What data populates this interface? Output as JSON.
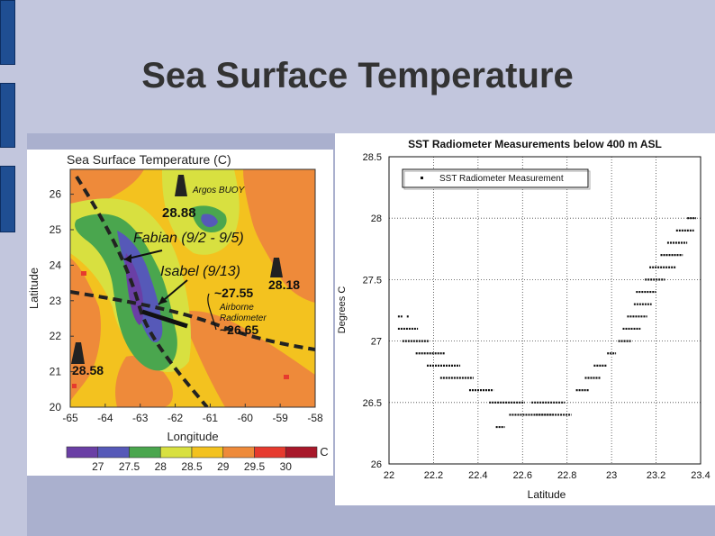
{
  "slide": {
    "title": "Sea Surface Temperature",
    "colors": {
      "background": "#c2c6dd",
      "accent": "#1f4e92",
      "title": "#333333"
    }
  },
  "map": {
    "title": "Sea Surface Temperature (C)",
    "xlabel": "Longitude",
    "ylabel": "Latitude",
    "x_ticks": [
      "-65",
      "-64",
      "-63",
      "-62",
      "-61",
      "-60",
      "-59",
      "-58"
    ],
    "y_ticks": [
      "20",
      "21",
      "22",
      "23",
      "24",
      "25",
      "26"
    ],
    "annotations": {
      "buoy_label": "Argos BUOY",
      "buoy_value": "28.88",
      "fabian": "Fabian (9/2 - 9/5)",
      "isabel": "Isabel (9/13)",
      "value_2755": "~27.55",
      "value_2818": "28.18",
      "airborne": "Airborne",
      "radiometer": "Radiometer",
      "value_2665": "~26.65",
      "value_2858": "28.58"
    },
    "colorbar": {
      "unit": "C",
      "labels": [
        "27",
        "27.5",
        "28",
        "28.5",
        "29",
        "29.5",
        "30"
      ],
      "colors": [
        "#6a3fa5",
        "#5659b8",
        "#4aa64e",
        "#d8e040",
        "#f3c21f",
        "#ee8a3a",
        "#e63a2e",
        "#a8182a"
      ]
    }
  },
  "chart_data": {
    "type": "scatter",
    "title": "SST Radiometer Measurements below 400 m ASL",
    "xlabel": "Latitude",
    "ylabel": "Degrees C",
    "xlim": [
      22,
      23.4
    ],
    "ylim": [
      26,
      28.5
    ],
    "x_ticks": [
      "22",
      "22.2",
      "22.4",
      "22.6",
      "22.8",
      "23",
      "23.2",
      "23.4"
    ],
    "y_ticks": [
      "26",
      "26.5",
      "27",
      "27.5",
      "28",
      "28.5"
    ],
    "grid": true,
    "legend": {
      "position": "top-left",
      "entries": [
        "SST Radiometer Measurement"
      ]
    },
    "series": [
      {
        "name": "SST Radiometer Measurement",
        "segments": [
          [
            22.04,
            22.06,
            27.2
          ],
          [
            22.08,
            22.09,
            27.2
          ],
          [
            22.04,
            22.13,
            27.1
          ],
          [
            22.06,
            22.18,
            27.0
          ],
          [
            22.12,
            22.25,
            26.9
          ],
          [
            22.17,
            22.32,
            26.8
          ],
          [
            22.23,
            22.38,
            26.7
          ],
          [
            22.36,
            22.47,
            26.6
          ],
          [
            22.45,
            22.61,
            26.5
          ],
          [
            22.54,
            22.74,
            26.4
          ],
          [
            22.48,
            22.52,
            26.3
          ],
          [
            22.66,
            22.82,
            26.4
          ],
          [
            22.64,
            22.79,
            26.5
          ],
          [
            22.84,
            22.9,
            26.6
          ],
          [
            22.88,
            22.95,
            26.7
          ],
          [
            22.92,
            22.98,
            26.8
          ],
          [
            22.98,
            23.02,
            26.9
          ],
          [
            23.03,
            23.09,
            27.0
          ],
          [
            23.05,
            23.13,
            27.1
          ],
          [
            23.07,
            23.16,
            27.2
          ],
          [
            23.1,
            23.18,
            27.3
          ],
          [
            23.11,
            23.2,
            27.4
          ],
          [
            23.15,
            23.24,
            27.5
          ],
          [
            23.17,
            23.29,
            27.6
          ],
          [
            23.22,
            23.32,
            27.7
          ],
          [
            23.25,
            23.34,
            27.8
          ],
          [
            23.29,
            23.37,
            27.9
          ],
          [
            23.34,
            23.38,
            28.0
          ]
        ]
      }
    ]
  }
}
